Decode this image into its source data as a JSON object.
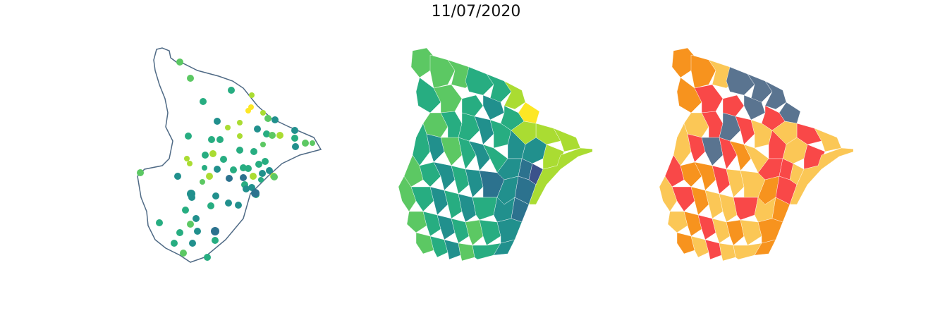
{
  "title": "11/07/2020",
  "colors": {
    "viridis": [
      "#440154",
      "#3b528b",
      "#2c728e",
      "#21908d",
      "#27ad81",
      "#5cc863",
      "#aadc32",
      "#fde725"
    ],
    "categorical": [
      "#5a7490",
      "#f7931e",
      "#fbc756",
      "#f94848"
    ],
    "outline": "#4f6a85"
  },
  "maps": [
    {
      "type": "points",
      "legend": "none"
    },
    {
      "type": "choropleth",
      "colormap": "viridis",
      "legend": "none"
    },
    {
      "type": "choropleth",
      "colormap": "categorical",
      "legend": "none"
    }
  ]
}
